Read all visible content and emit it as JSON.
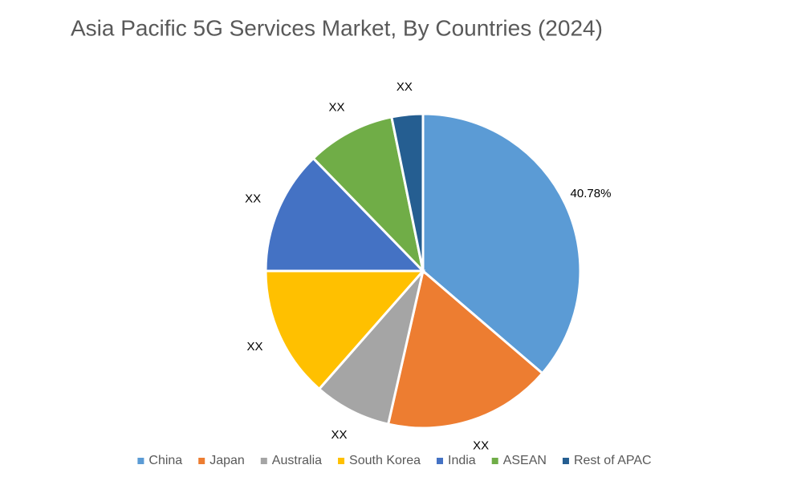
{
  "chart_data": {
    "type": "pie",
    "title": "Asia Pacific 5G Services Market, By Countries (2024)",
    "categories": [
      "China",
      "Japan",
      "Australia",
      "South Korea",
      "India",
      "ASEAN",
      "Rest of APAC"
    ],
    "values": [
      40.78,
      19.4,
      8.9,
      15.2,
      14.3,
      10.2,
      3.6
    ],
    "value_labels": [
      "40.78%",
      "XX",
      "XX",
      "XX",
      "XX",
      "XX",
      "XX"
    ],
    "colors": [
      "#5b9bd5",
      "#ed7d31",
      "#a5a5a5",
      "#ffc000",
      "#4472c4",
      "#70ad47",
      "#255e91"
    ],
    "legend": "bottom"
  }
}
